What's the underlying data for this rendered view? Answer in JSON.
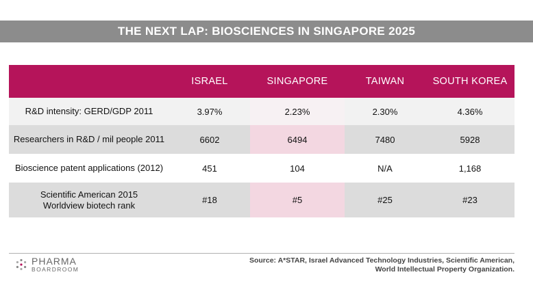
{
  "title": "THE NEXT LAP: BIOSCIENCES IN SINGAPORE 2025",
  "columns": [
    "",
    "ISRAEL",
    "SINGAPORE",
    "TAIWAN",
    "SOUTH KOREA"
  ],
  "rows": [
    {
      "label": "R&D intensity: GERD/GDP 2011",
      "label2": "",
      "values": [
        "3.97%",
        "2.23%",
        "2.30%",
        "4.36%"
      ]
    },
    {
      "label": "Researchers in R&D / mil people 2011",
      "label2": "",
      "values": [
        "6602",
        "6494",
        "7480",
        "5928"
      ]
    },
    {
      "label": "Bioscience patent applications (2012)",
      "label2": "",
      "values": [
        "451",
        "104",
        "N/A",
        "1,168"
      ]
    },
    {
      "label": "Scientific American 2015",
      "label2": "Worldview biotech rank",
      "values": [
        "#18",
        "#5",
        "#25",
        "#23"
      ]
    }
  ],
  "colors": {
    "header": "#b5145a",
    "banner": "#8c8c8c",
    "highlight": "#f3d7e1"
  },
  "footer": {
    "logo_top": "PHARMA",
    "logo_bottom": "BOARDROOM",
    "logo_icon": "dots-logo-icon",
    "source_line1": "Source: A*STAR, Israel Advanced Technology Industries, Scientific American,",
    "source_line2": "World Intellectual Property Organization."
  }
}
